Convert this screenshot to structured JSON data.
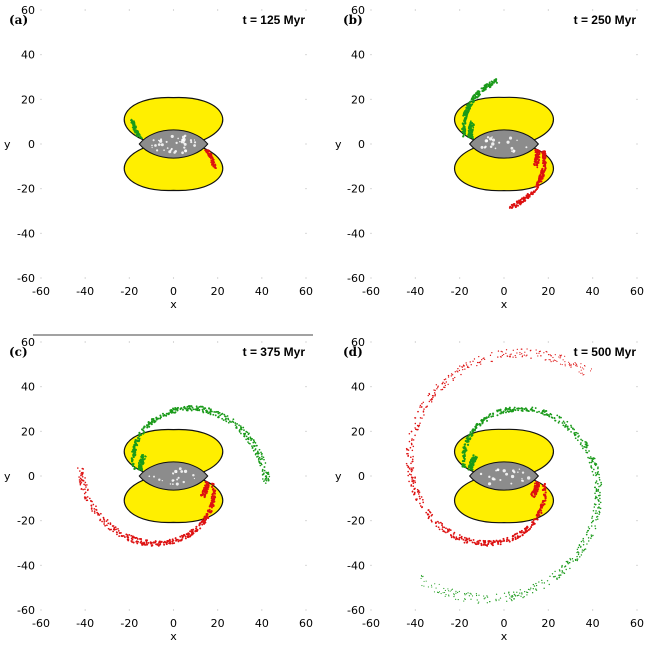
{
  "figure": {
    "panels": [
      {
        "tag": "(a)",
        "time": "t = 125 Myr",
        "stream_extent_deg": 0
      },
      {
        "tag": "(b)",
        "time": "t = 250 Myr",
        "stream_extent_deg": 75
      },
      {
        "tag": "(c)",
        "time": "t = 375 Myr",
        "stream_extent_deg": 175
      },
      {
        "tag": "(d)",
        "time": "t = 500 Myr",
        "stream_extent_deg": 300
      }
    ]
  },
  "chart_data": {
    "type": "scatter",
    "xlabel": "x",
    "ylabel": "y",
    "xlim": [
      -60,
      60
    ],
    "ylim": [
      -60,
      60
    ],
    "xticks": [
      -60,
      -40,
      -20,
      0,
      20,
      40,
      60
    ],
    "yticks": [
      -60,
      -40,
      -20,
      0,
      20,
      40,
      60
    ],
    "grid": false,
    "colors": {
      "ring": "#ffef00",
      "bar": "#8c8c8c",
      "stream_left": "#1a9a1a",
      "stream_right": "#dd1111"
    },
    "stream_spiral": {
      "start_radius": 18,
      "end_radius": 60,
      "total_sweep_deg": 300,
      "left_start_angle_deg": 170,
      "right_start_angle_deg": -10
    }
  }
}
